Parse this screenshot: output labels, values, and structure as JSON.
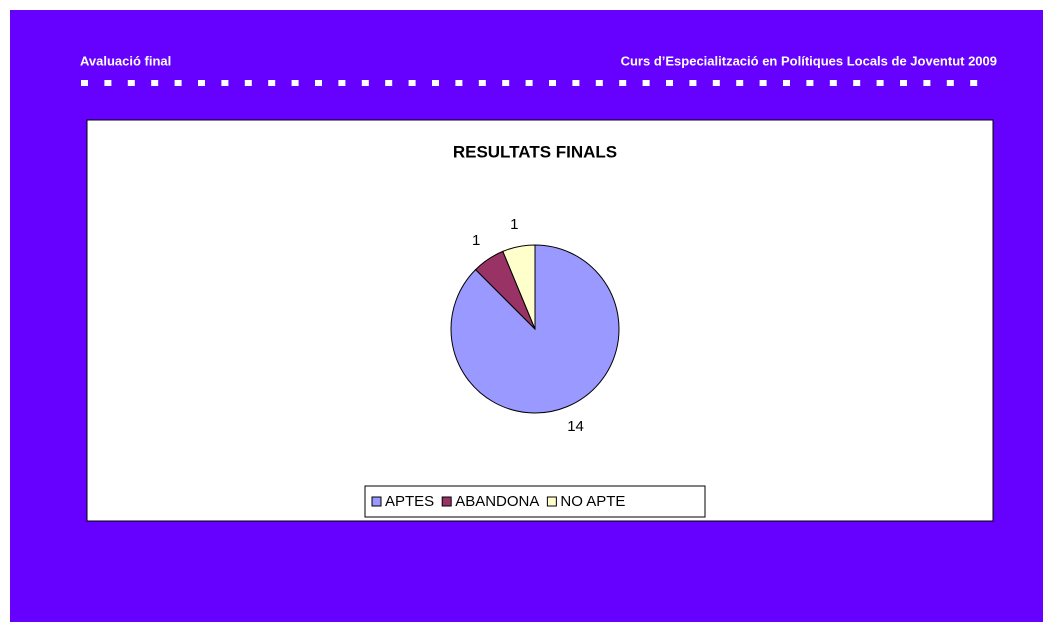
{
  "header": {
    "left": "Avaluació final",
    "right": "Curs d’Especialització en Polítiques Locals de Joventut 2009"
  },
  "chart_data": {
    "type": "pie",
    "title": "RESULTATS FINALS",
    "categories": [
      "APTES",
      "ABANDONA",
      "NO APTE"
    ],
    "values": [
      14,
      1,
      1
    ],
    "colors": [
      "#9999ff",
      "#993366",
      "#ffffcc"
    ],
    "legend": "bottom"
  }
}
